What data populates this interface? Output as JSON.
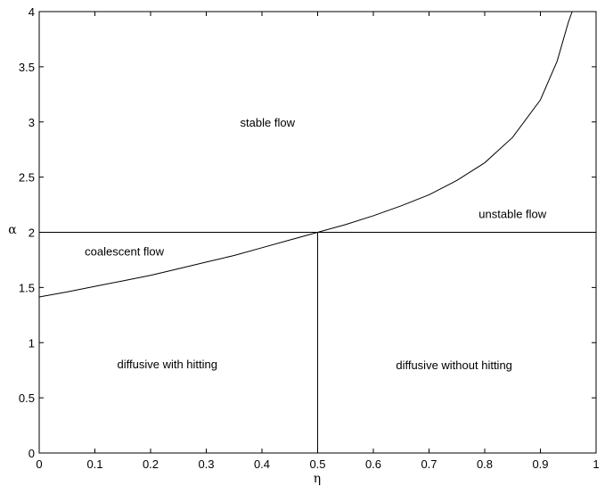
{
  "chart_data": {
    "type": "line",
    "title": "",
    "xlabel": "η",
    "ylabel": "α",
    "xlim": [
      0,
      1
    ],
    "ylim": [
      0,
      4
    ],
    "grid": false,
    "x_ticks": [
      "0",
      "0.1",
      "0.2",
      "0.3",
      "0.4",
      "0.5",
      "0.6",
      "0.7",
      "0.8",
      "0.9",
      "1"
    ],
    "y_ticks": [
      "0",
      "0.5",
      "1",
      "1.5",
      "2",
      "2.5",
      "3",
      "3.5",
      "4"
    ],
    "series": [
      {
        "points": [
          [
            0.0,
            1.414
          ],
          [
            0.05,
            1.46
          ],
          [
            0.1,
            1.51
          ],
          [
            0.15,
            1.56
          ],
          [
            0.2,
            1.61
          ],
          [
            0.25,
            1.67
          ],
          [
            0.3,
            1.73
          ],
          [
            0.35,
            1.79
          ],
          [
            0.4,
            1.86
          ],
          [
            0.45,
            1.93
          ],
          [
            0.5,
            2.0
          ],
          [
            0.55,
            2.07
          ],
          [
            0.6,
            2.15
          ],
          [
            0.65,
            2.24
          ],
          [
            0.7,
            2.34
          ],
          [
            0.75,
            2.47
          ],
          [
            0.8,
            2.63
          ],
          [
            0.85,
            2.86
          ],
          [
            0.9,
            3.2
          ],
          [
            0.93,
            3.55
          ],
          [
            0.95,
            3.9
          ],
          [
            0.957,
            4.0
          ]
        ]
      },
      {
        "points": [
          [
            0,
            2
          ],
          [
            1,
            2
          ]
        ]
      },
      {
        "points": [
          [
            0.5,
            0
          ],
          [
            0.5,
            2
          ]
        ]
      }
    ],
    "annotations": [
      {
        "text": "stable flow",
        "x": 0.41,
        "y": 3.0
      },
      {
        "text": "unstable flow",
        "x": 0.85,
        "y": 2.17
      },
      {
        "text": "coalescent flow",
        "x": 0.153,
        "y": 1.83
      },
      {
        "text": "diffusive with hitting",
        "x": 0.23,
        "y": 0.81
      },
      {
        "text": "diffusive without hitting",
        "x": 0.745,
        "y": 0.8
      }
    ]
  }
}
